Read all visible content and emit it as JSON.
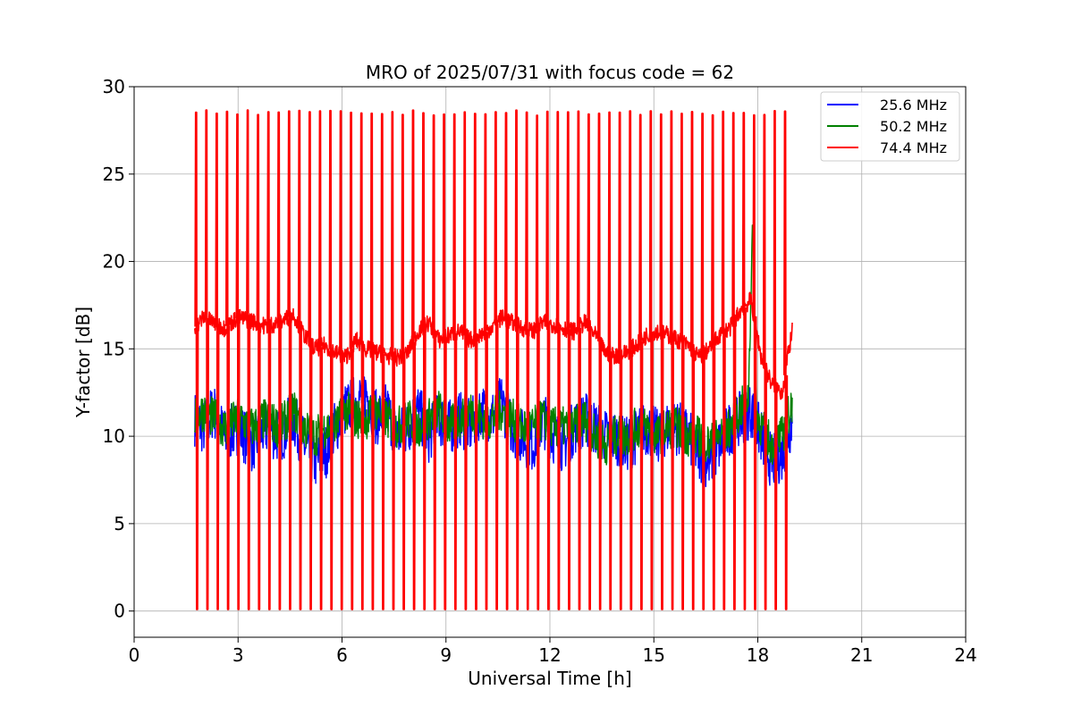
{
  "chart_data": {
    "type": "line",
    "title": "MRO of 2025/07/31 with focus code = 62",
    "xlabel": "Universal Time [h]",
    "ylabel": "Y-factor [dB]",
    "xlim": [
      0,
      24
    ],
    "ylim": [
      -1.5,
      30
    ],
    "xticks": [
      0,
      3,
      6,
      9,
      12,
      15,
      18,
      21,
      24
    ],
    "yticks": [
      0,
      5,
      10,
      15,
      20,
      25,
      30
    ],
    "grid": true,
    "legend_position": "top-right",
    "series": [
      {
        "name": "25.6 MHz",
        "color": "#0000ff",
        "baseline": {
          "x": [
            1.75,
            2.0,
            2.3,
            2.6,
            3.0,
            3.4,
            3.8,
            4.2,
            4.6,
            4.9,
            5.2,
            5.5,
            5.8,
            6.1,
            6.4,
            6.7,
            7.0,
            7.3,
            7.6,
            7.9,
            8.2,
            8.5,
            8.8,
            9.1,
            9.4,
            9.7,
            10.0,
            10.3,
            10.6,
            10.9,
            11.2,
            11.5,
            11.8,
            12.1,
            12.4,
            12.7,
            13.0,
            13.3,
            13.6,
            13.9,
            14.2,
            14.5,
            14.8,
            15.1,
            15.4,
            15.7,
            16.0,
            16.3,
            16.6,
            16.9,
            17.2,
            17.5,
            17.8,
            18.1,
            18.4,
            18.7,
            19.0
          ],
          "y": [
            11.0,
            10.5,
            11.5,
            10.0,
            10.5,
            9.5,
            10.5,
            10.0,
            11.0,
            9.5,
            8.5,
            9.0,
            10.5,
            11.5,
            12.0,
            12.5,
            11.0,
            11.5,
            10.0,
            10.5,
            11.5,
            10.0,
            11.0,
            10.5,
            11.0,
            10.5,
            11.5,
            11.0,
            12.0,
            10.5,
            10.0,
            9.5,
            11.0,
            10.0,
            9.5,
            10.5,
            11.0,
            10.5,
            10.0,
            10.0,
            9.5,
            10.0,
            10.5,
            10.0,
            10.5,
            10.5,
            10.0,
            9.0,
            8.5,
            9.5,
            10.5,
            11.0,
            11.5,
            10.0,
            8.5,
            9.0,
            11.0
          ],
          "amplitude": 1.6
        }
      },
      {
        "name": "50.2 MHz",
        "color": "#008000",
        "baseline": {
          "x": [
            1.75,
            2.0,
            2.3,
            2.6,
            3.0,
            3.4,
            3.8,
            4.2,
            4.6,
            4.9,
            5.2,
            5.5,
            5.8,
            6.1,
            6.4,
            6.7,
            7.0,
            7.3,
            7.6,
            7.9,
            8.2,
            8.5,
            8.8,
            9.1,
            9.4,
            9.7,
            10.0,
            10.3,
            10.6,
            10.9,
            11.2,
            11.5,
            11.8,
            12.1,
            12.4,
            12.7,
            13.0,
            13.3,
            13.6,
            13.9,
            14.2,
            14.5,
            14.8,
            15.1,
            15.4,
            15.7,
            16.0,
            16.3,
            16.6,
            16.9,
            17.2,
            17.5,
            17.8,
            18.1,
            18.4,
            18.7,
            19.0
          ],
          "y": [
            11.0,
            11.5,
            11.0,
            10.5,
            11.0,
            10.5,
            11.0,
            10.5,
            11.5,
            10.5,
            10.0,
            10.5,
            10.5,
            11.5,
            11.0,
            11.0,
            11.5,
            11.0,
            10.5,
            11.0,
            10.5,
            11.0,
            11.5,
            10.5,
            11.0,
            11.5,
            11.0,
            11.0,
            11.5,
            11.0,
            10.5,
            10.5,
            11.0,
            10.5,
            10.5,
            10.5,
            11.0,
            10.0,
            9.5,
            10.0,
            10.0,
            10.5,
            10.5,
            10.0,
            10.5,
            10.5,
            10.0,
            10.0,
            9.5,
            10.0,
            10.5,
            11.5,
            12.5,
            10.5,
            9.5,
            10.0,
            12.0
          ],
          "amplitude": 1.2
        },
        "spike": {
          "x": 17.85,
          "y": 22.0
        }
      },
      {
        "name": "74.4 MHz",
        "color": "#ff0000",
        "baseline": {
          "x": [
            1.75,
            2.0,
            2.3,
            2.6,
            3.0,
            3.4,
            3.8,
            4.2,
            4.6,
            4.9,
            5.2,
            5.5,
            5.8,
            6.1,
            6.4,
            6.7,
            7.0,
            7.3,
            7.6,
            7.9,
            8.2,
            8.5,
            8.8,
            9.1,
            9.4,
            9.7,
            10.0,
            10.3,
            10.6,
            10.9,
            11.2,
            11.5,
            11.8,
            12.1,
            12.4,
            12.7,
            13.0,
            13.3,
            13.6,
            13.9,
            14.2,
            14.5,
            14.8,
            15.1,
            15.4,
            15.7,
            16.0,
            16.3,
            16.6,
            16.9,
            17.2,
            17.5,
            17.8,
            18.1,
            18.4,
            18.7,
            19.0
          ],
          "y": [
            16.2,
            16.8,
            16.5,
            16.2,
            16.8,
            16.6,
            16.3,
            16.5,
            17.0,
            15.8,
            15.0,
            15.2,
            14.8,
            14.5,
            15.5,
            15.0,
            14.8,
            14.6,
            14.5,
            14.8,
            16.0,
            16.5,
            15.5,
            15.8,
            16.0,
            15.5,
            15.8,
            16.2,
            16.8,
            16.5,
            16.2,
            16.0,
            16.5,
            16.4,
            16.2,
            16.0,
            16.5,
            15.8,
            14.8,
            14.6,
            14.8,
            15.2,
            15.8,
            16.0,
            15.8,
            15.5,
            15.2,
            14.5,
            15.0,
            15.8,
            16.2,
            17.2,
            17.8,
            14.5,
            13.0,
            12.5,
            16.2
          ],
          "amplitude": 0.5
        },
        "pulses": {
          "start": 1.78,
          "end": 18.78,
          "count": 58,
          "peak": 28.5,
          "floor": 0.1
        }
      }
    ]
  }
}
